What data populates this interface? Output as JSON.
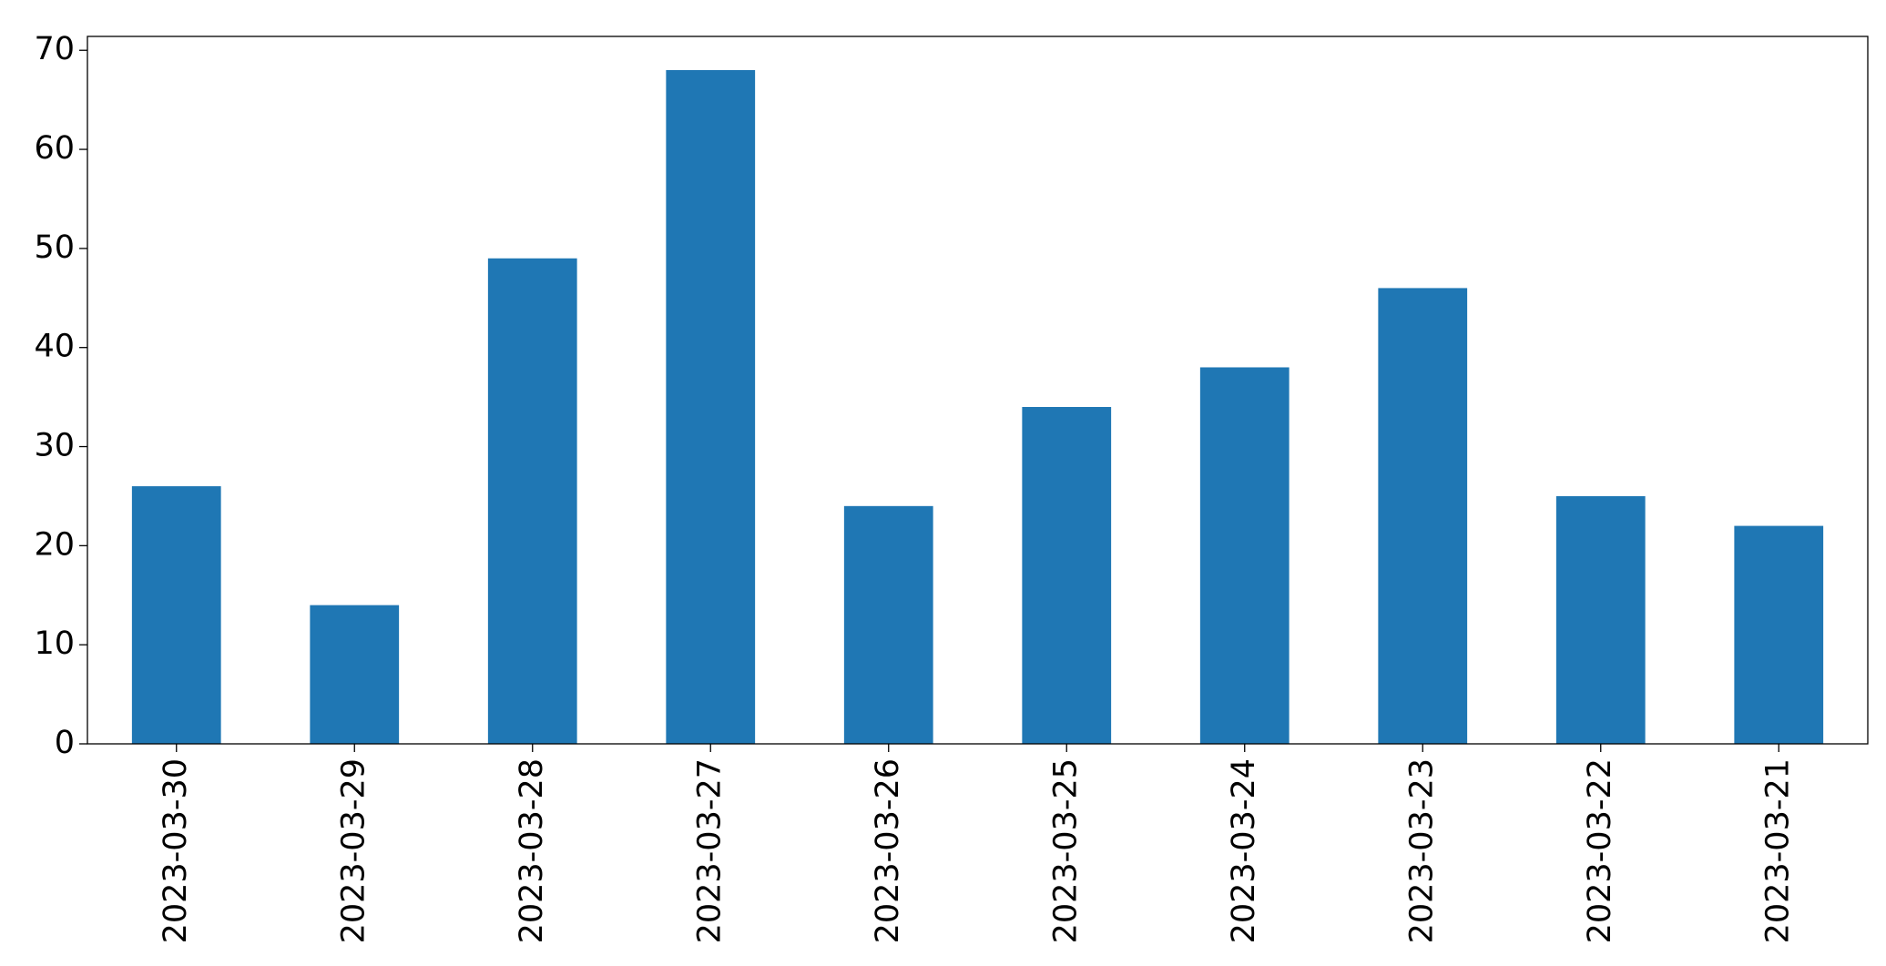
{
  "chart_data": {
    "type": "bar",
    "categories": [
      "2023-03-30",
      "2023-03-29",
      "2023-03-28",
      "2023-03-27",
      "2023-03-26",
      "2023-03-25",
      "2023-03-24",
      "2023-03-23",
      "2023-03-22",
      "2023-03-21"
    ],
    "values": [
      26,
      14,
      49,
      68,
      24,
      34,
      38,
      46,
      25,
      22
    ],
    "color": "#1f77b4",
    "ylim": [
      0,
      71.4
    ],
    "yticks": [
      0,
      10,
      20,
      30,
      40,
      50,
      60,
      70
    ],
    "grid": false
  }
}
